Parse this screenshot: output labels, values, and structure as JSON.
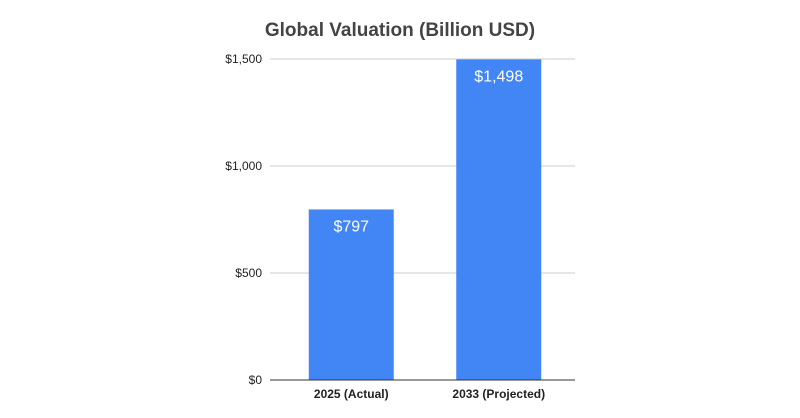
{
  "chart_data": {
    "type": "bar",
    "title": "Global Valuation (Billion USD)",
    "categories": [
      "2025 (Actual)",
      "2033 (Projected)"
    ],
    "values": [
      797,
      1498
    ],
    "data_labels": [
      "$797",
      "$1,498"
    ],
    "xlabel": "",
    "ylabel": "",
    "ylim": [
      0,
      1500
    ],
    "yticks": [
      0,
      500,
      1000,
      1500
    ],
    "ytick_labels": [
      "$0",
      "$500",
      "$1,000",
      "$1,500"
    ],
    "grid": true,
    "legend": "none",
    "bar_color": "#4285f4"
  }
}
